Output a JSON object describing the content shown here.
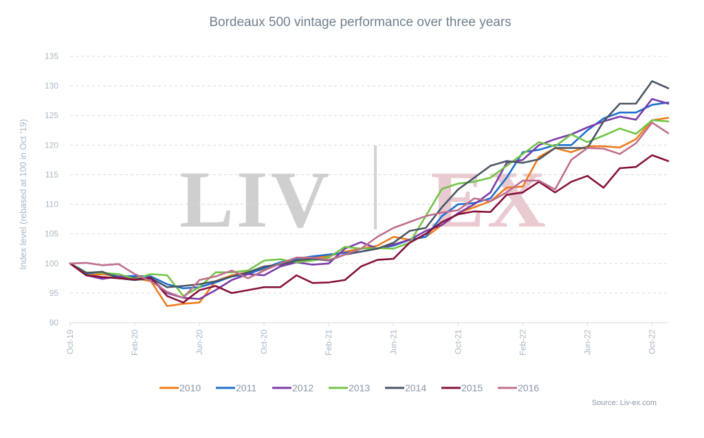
{
  "chart_data": {
    "type": "line",
    "title": "Bordeaux 500 vintage performance over three years",
    "ylabel": "Index level (rebased at 100 in Oct '19)",
    "xlabel": "",
    "ylim": [
      90,
      135
    ],
    "yticks": [
      90,
      95,
      100,
      105,
      110,
      115,
      120,
      125,
      130,
      135
    ],
    "x_tick_labels": [
      "Oct-19",
      "Feb-20",
      "Jun-20",
      "Oct-20",
      "Feb-21",
      "Jun-21",
      "Oct-21",
      "Feb-22",
      "Jun-22",
      "Oct-22"
    ],
    "x_tick_index": [
      0,
      4,
      8,
      12,
      16,
      20,
      24,
      28,
      32,
      36
    ],
    "grid": true,
    "legend_position": "bottom",
    "source": "Source: Liv-ex.com",
    "watermark": "LIV|EX",
    "series": [
      {
        "name": "2010",
        "color": "#f07b1c",
        "values": [
          100,
          98.0,
          98.2,
          97.8,
          97.5,
          97.0,
          92.8,
          93.2,
          93.4,
          97.0,
          98.0,
          98.5,
          99.0,
          100.0,
          100.5,
          101.0,
          101.2,
          102.0,
          102.5,
          103.0,
          104.5,
          104.0,
          104.5,
          106.5,
          108.5,
          109.5,
          110.5,
          112.8,
          113.0,
          118.0,
          119.5,
          118.8,
          119.8,
          119.8,
          119.6,
          121.0,
          124.2,
          124.6
        ]
      },
      {
        "name": "2011",
        "color": "#1b6fce",
        "values": [
          100,
          98.3,
          98.5,
          97.8,
          97.9,
          97.8,
          96.5,
          95.8,
          96.0,
          96.8,
          97.8,
          98.2,
          99.2,
          100.2,
          100.8,
          101.2,
          101.5,
          101.8,
          102.0,
          102.5,
          103.0,
          104.0,
          104.5,
          108.0,
          110.0,
          110.2,
          111.0,
          114.5,
          118.8,
          119.2,
          120.0,
          120.0,
          122.5,
          124.5,
          125.5,
          125.5,
          126.8,
          127.2
        ]
      },
      {
        "name": "2012",
        "color": "#7a3aa7",
        "values": [
          100,
          98.0,
          97.4,
          97.8,
          97.6,
          97.4,
          95.0,
          94.2,
          94.0,
          95.5,
          97.2,
          98.2,
          98.0,
          99.5,
          100.2,
          99.8,
          100.0,
          102.5,
          103.6,
          102.5,
          103.2,
          104.0,
          105.5,
          106.5,
          108.5,
          110.0,
          112.0,
          117.0,
          117.5,
          120.0,
          121.0,
          121.8,
          123.0,
          124.0,
          124.8,
          124.3,
          127.8,
          127.0
        ]
      },
      {
        "name": "2013",
        "color": "#72c447",
        "values": [
          100,
          98.5,
          98.4,
          98.2,
          97.4,
          98.2,
          98.0,
          94.5,
          96.0,
          98.5,
          98.5,
          98.8,
          100.5,
          100.7,
          100.2,
          100.5,
          101.0,
          102.8,
          102.5,
          102.6,
          102.5,
          103.5,
          108.0,
          112.6,
          113.5,
          113.8,
          114.5,
          116.5,
          118.5,
          120.5,
          119.8,
          121.8,
          120.5,
          121.6,
          122.8,
          121.9,
          124.2,
          124.0
        ]
      },
      {
        "name": "2014",
        "color": "#4a5563",
        "values": [
          100,
          98.4,
          98.6,
          97.5,
          97.2,
          97.5,
          96.0,
          96.2,
          96.5,
          97.0,
          97.8,
          98.5,
          99.5,
          99.8,
          100.5,
          100.8,
          100.5,
          101.5,
          102.0,
          102.5,
          103.5,
          105.5,
          106.0,
          109.5,
          112.5,
          114.5,
          116.5,
          117.3,
          117.0,
          117.6,
          119.5,
          119.5,
          119.5,
          124.0,
          127.0,
          127.0,
          130.8,
          129.6
        ]
      },
      {
        "name": "2015",
        "color": "#86103a",
        "values": [
          100,
          98.0,
          97.7,
          97.5,
          97.3,
          97.6,
          94.5,
          93.4,
          95.5,
          96.2,
          95.0,
          95.5,
          96.0,
          96.0,
          98.0,
          96.7,
          96.8,
          97.2,
          99.5,
          100.6,
          100.8,
          103.5,
          105.0,
          107.0,
          108.3,
          108.8,
          108.7,
          111.6,
          112.0,
          113.8,
          112.0,
          113.8,
          114.8,
          112.8,
          116.1,
          116.3,
          118.3,
          117.3
        ]
      },
      {
        "name": "2016",
        "color": "#bf6e8e",
        "values": [
          100,
          100.1,
          99.7,
          99.9,
          98.2,
          97.0,
          95.2,
          94.2,
          97.2,
          97.8,
          98.8,
          97.5,
          98.8,
          100.0,
          101.0,
          101.0,
          100.6,
          101.5,
          102.5,
          104.5,
          106.0,
          107.0,
          108.0,
          108.6,
          109.0,
          111.0,
          110.5,
          112.0,
          114.0,
          114.0,
          112.5,
          117.5,
          119.5,
          119.4,
          118.5,
          120.3,
          123.8,
          122.0
        ]
      }
    ]
  }
}
